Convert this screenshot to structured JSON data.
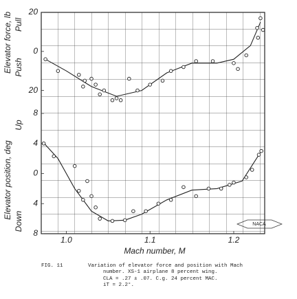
{
  "chart_data": [
    {
      "type": "scatter",
      "ylabel": "Elevator force, lb",
      "ylabel_top": "Pull",
      "ylabel_bottom": "Push",
      "xlim": [
        0.97,
        1.237
      ],
      "ylim": [
        -30,
        20
      ],
      "yticks": [
        20,
        0,
        {
          "value": -20,
          "label": "20"
        }
      ],
      "points": {
        "x": [
          0.975,
          0.99,
          1.015,
          1.02,
          1.022,
          1.03,
          1.035,
          1.04,
          1.045,
          1.055,
          1.06,
          1.065,
          1.075,
          1.085,
          1.1,
          1.115,
          1.125,
          1.14,
          1.155,
          1.175,
          1.2,
          1.205,
          1.215,
          1.228,
          1.229,
          1.232,
          1.235
        ],
        "values": [
          -4,
          -10,
          -12,
          -18,
          -15,
          -14,
          -17,
          -22,
          -20,
          -25,
          -24,
          -25,
          -14,
          -20,
          -17,
          -15,
          -10,
          -8,
          -5,
          -5,
          -6,
          -9,
          -2,
          12,
          7,
          17,
          11
        ]
      },
      "curve": {
        "x": [
          0.975,
          1.0,
          1.03,
          1.06,
          1.09,
          1.12,
          1.15,
          1.18,
          1.2,
          1.22,
          1.232
        ],
        "values": [
          -4,
          -10,
          -18,
          -23,
          -20,
          -11,
          -6,
          -6,
          -4,
          3,
          15
        ]
      }
    },
    {
      "type": "scatter",
      "ylabel": "Elevator position, deg",
      "ylabel_top": "Up",
      "ylabel_bottom": "Down",
      "xlabel": "Mach number, M",
      "xlim": [
        0.97,
        1.237
      ],
      "ylim": [
        -8,
        8
      ],
      "xticks": [
        {
          "value": 1,
          "label": "1.0"
        },
        1.1,
        1.2
      ],
      "yticks": [
        8,
        4,
        0,
        {
          "value": -4,
          "label": "4"
        },
        {
          "value": -8,
          "label": "8"
        }
      ],
      "points": {
        "x": [
          0.973,
          0.985,
          1.01,
          1.015,
          1.02,
          1.025,
          1.03,
          1.035,
          1.04,
          1.055,
          1.07,
          1.08,
          1.095,
          1.11,
          1.125,
          1.14,
          1.155,
          1.17,
          1.185,
          1.195,
          1.2,
          1.215,
          1.222,
          1.23,
          1.233
        ],
        "values": [
          4,
          2.3,
          1,
          -2.3,
          -3.5,
          -1,
          -3,
          -4.5,
          -6,
          -6.3,
          -6.2,
          -5,
          -5,
          -4,
          -3.5,
          -1.8,
          -3,
          -2,
          -2,
          -1.5,
          -1.2,
          -0.5,
          0.5,
          2.5,
          3
        ]
      },
      "curve": {
        "x": [
          0.972,
          0.99,
          1.01,
          1.03,
          1.05,
          1.07,
          1.09,
          1.12,
          1.15,
          1.18,
          1.21,
          1.233
        ],
        "values": [
          4.2,
          2,
          -2,
          -5,
          -6.3,
          -6.2,
          -5.4,
          -3.5,
          -2.2,
          -2,
          -1,
          3
        ]
      }
    }
  ],
  "badge": "NACA",
  "caption": {
    "fig": "FIG. 11",
    "line1": "Variation of elevator force and position with Mach",
    "line2": "number.  XS-1 airplane 8 percent wing.",
    "line3": "CLA = .27 ± .07.  C.g. 24 percent MAC.",
    "line4": "iT = 2.2°."
  }
}
